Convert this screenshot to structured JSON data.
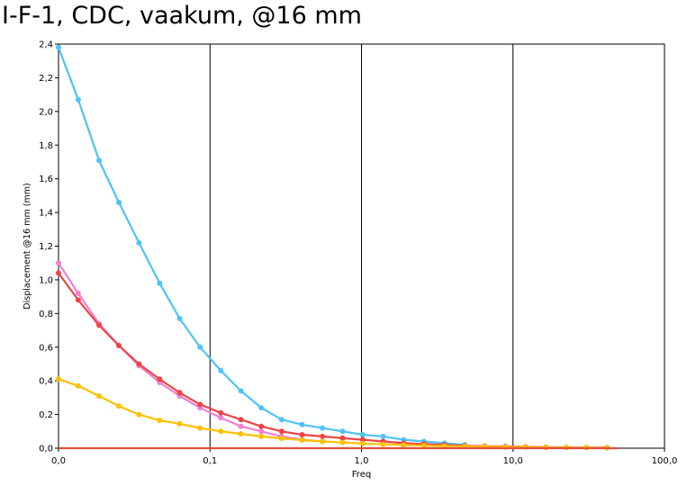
{
  "chart_data": {
    "type": "line",
    "title": "I-F-1, CDC, vaakum, @16 mm",
    "xlabel": "Freq",
    "ylabel": "Displacement @16  mm (mm)",
    "xscale": "log",
    "xlim": [
      0.01,
      100
    ],
    "ylim": [
      0,
      2.4
    ],
    "grid": true,
    "x_tick_labels": [
      "0,0",
      "0,1",
      "1,0",
      "10,0",
      "100,0"
    ],
    "y_tick_labels": [
      "0,0",
      "0,2",
      "0,4",
      "0,6",
      "0,8",
      "1,0",
      "1,2",
      "1,4",
      "1,6",
      "1,8",
      "2,0",
      "2,2",
      "2,4"
    ],
    "series": [
      {
        "color": "#4FC3F7",
        "x": [
          0.01,
          0.0135,
          0.0185,
          0.025,
          0.034,
          0.0465,
          0.063,
          0.086,
          0.118,
          0.16,
          0.218,
          0.297,
          0.405,
          0.552,
          0.75,
          1.02,
          1.39,
          1.9,
          2.58,
          3.52,
          4.8
        ],
        "y": [
          2.38,
          2.07,
          1.71,
          1.46,
          1.22,
          0.98,
          0.77,
          0.6,
          0.46,
          0.34,
          0.24,
          0.17,
          0.14,
          0.12,
          0.1,
          0.08,
          0.07,
          0.05,
          0.04,
          0.03,
          0.02
        ]
      },
      {
        "color": "#F080D8",
        "x": [
          0.01,
          0.0135,
          0.0185,
          0.025,
          0.034,
          0.0465,
          0.063,
          0.086,
          0.118,
          0.16,
          0.218,
          0.297,
          0.405,
          0.552
        ],
        "y": [
          1.1,
          0.92,
          0.74,
          0.61,
          0.49,
          0.39,
          0.31,
          0.24,
          0.18,
          0.13,
          0.1,
          0.07,
          0.05,
          0.04
        ]
      },
      {
        "color": "#EE4444",
        "x": [
          0.01,
          0.0135,
          0.0185,
          0.025,
          0.034,
          0.0465,
          0.063,
          0.086,
          0.118,
          0.16,
          0.218,
          0.297,
          0.405,
          0.552,
          0.75,
          1.02,
          1.39,
          1.9,
          2.58,
          3.52,
          4.8,
          6.5,
          8.9,
          12.1,
          16.5,
          22.5,
          30.6,
          41.7
        ],
        "y": [
          1.04,
          0.88,
          0.73,
          0.61,
          0.5,
          0.41,
          0.33,
          0.26,
          0.21,
          0.17,
          0.13,
          0.1,
          0.08,
          0.07,
          0.06,
          0.05,
          0.04,
          0.03,
          0.025,
          0.02,
          0.015,
          0.012,
          0.01,
          0.008,
          0.006,
          0.005,
          0.004,
          0.003
        ]
      },
      {
        "color": "#FFC000",
        "x": [
          0.01,
          0.0135,
          0.0185,
          0.025,
          0.034,
          0.0465,
          0.063,
          0.086,
          0.118,
          0.16,
          0.218,
          0.297,
          0.405,
          0.552,
          0.75,
          1.02,
          1.39,
          1.9,
          2.58,
          3.52,
          4.8,
          6.5,
          8.9,
          12.1,
          16.5,
          22.5,
          30.6,
          41.7
        ],
        "y": [
          0.41,
          0.37,
          0.31,
          0.25,
          0.2,
          0.165,
          0.145,
          0.12,
          0.1,
          0.085,
          0.07,
          0.058,
          0.048,
          0.04,
          0.034,
          0.028,
          0.023,
          0.019,
          0.016,
          0.013,
          0.011,
          0.009,
          0.007,
          0.006,
          0.005,
          0.004,
          0.003,
          0.002
        ]
      },
      {
        "color": "#E05040",
        "x": [
          0.01,
          50
        ],
        "y": [
          0.0,
          0.0
        ]
      }
    ]
  }
}
